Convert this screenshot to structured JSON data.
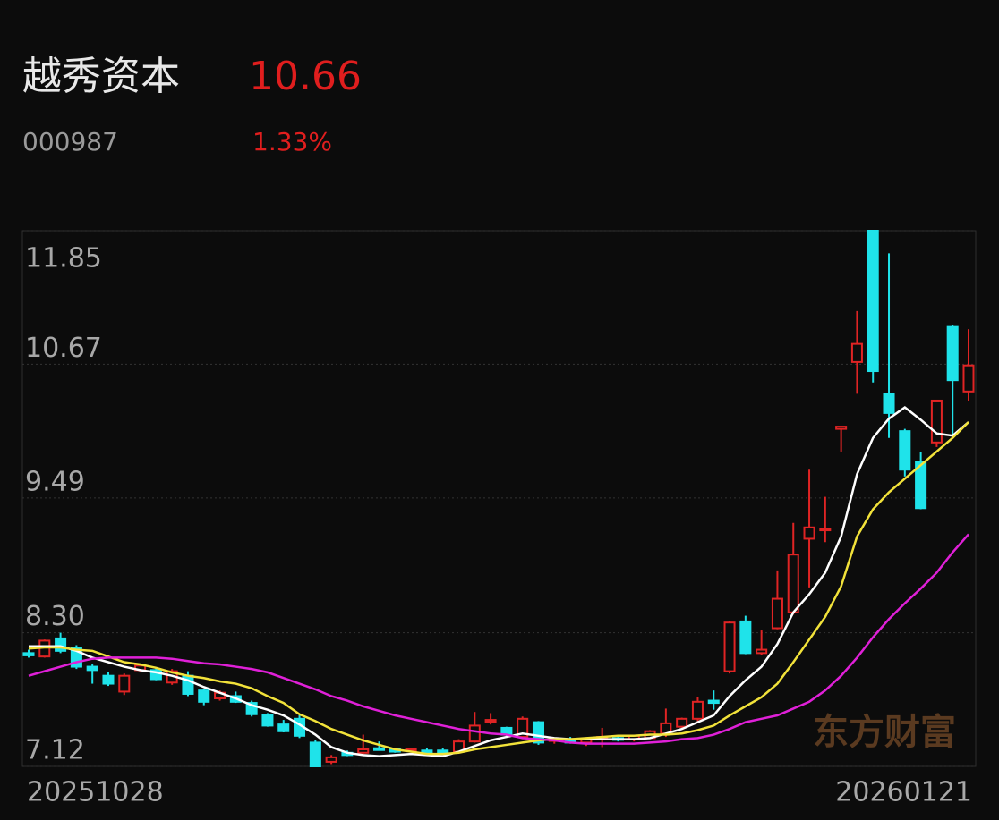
{
  "header": {
    "name": "越秀资本",
    "price": "10.66",
    "code": "000987",
    "change": "1.33%"
  },
  "chart_data": {
    "type": "candlestick",
    "watermark": "东方财富",
    "categories": [
      "20251028",
      null,
      null,
      null,
      null,
      null,
      null,
      null,
      null,
      null,
      null,
      null,
      null,
      null,
      null,
      null,
      null,
      null,
      null,
      null,
      null,
      null,
      null,
      null,
      null,
      null,
      null,
      null,
      null,
      null,
      null,
      null,
      null,
      null,
      null,
      null,
      null,
      null,
      null,
      null,
      null,
      null,
      null,
      null,
      null,
      null,
      null,
      null,
      null,
      null,
      null,
      null,
      null,
      null,
      null,
      null,
      null,
      null,
      null,
      "20260121"
    ],
    "open": [
      8.12,
      8.09,
      8.25,
      8.17,
      8.0,
      7.92,
      7.78,
      7.97,
      7.97,
      7.86,
      7.92,
      7.79,
      7.72,
      7.74,
      7.68,
      7.57,
      7.49,
      7.54,
      7.33,
      7.16,
      7.24,
      7.24,
      7.28,
      7.27,
      7.26,
      7.26,
      7.26,
      7.25,
      7.34,
      7.52,
      7.46,
      7.38,
      7.51,
      7.35,
      7.36,
      7.33,
      7.37,
      7.37,
      7.36,
      7.37,
      7.41,
      7.47,
      7.54,
      7.7,
      7.96,
      8.4,
      8.12,
      8.34,
      8.48,
      9.13,
      9.21,
      10.1,
      10.69,
      11.85,
      10.41,
      10.08,
      9.81,
      9.98,
      11.0,
      10.43
    ],
    "high": [
      8.15,
      8.24,
      8.3,
      8.19,
      8.02,
      7.95,
      7.94,
      8.02,
      7.99,
      7.98,
      7.96,
      7.8,
      7.79,
      7.78,
      7.7,
      7.59,
      7.53,
      7.57,
      7.35,
      7.22,
      7.26,
      7.4,
      7.34,
      7.28,
      7.28,
      7.28,
      7.28,
      7.36,
      7.6,
      7.59,
      7.47,
      7.56,
      7.52,
      7.37,
      7.38,
      7.37,
      7.46,
      7.39,
      7.4,
      7.44,
      7.63,
      7.55,
      7.73,
      7.79,
      8.4,
      8.45,
      8.32,
      8.85,
      9.27,
      9.74,
      9.5,
      10.12,
      11.14,
      11.85,
      11.65,
      10.1,
      9.9,
      10.35,
      11.02,
      10.98
    ],
    "low": [
      8.08,
      8.08,
      8.12,
      7.98,
      7.85,
      7.83,
      7.75,
      7.95,
      7.88,
      7.84,
      7.74,
      7.66,
      7.7,
      7.68,
      7.56,
      7.47,
      7.42,
      7.37,
      7.12,
      7.14,
      7.21,
      7.22,
      7.26,
      7.24,
      7.25,
      7.23,
      7.23,
      7.24,
      7.33,
      7.49,
      7.38,
      7.36,
      7.31,
      7.32,
      7.32,
      7.3,
      7.29,
      7.34,
      7.34,
      7.36,
      7.38,
      7.45,
      7.52,
      7.62,
      7.94,
      8.11,
      8.1,
      8.33,
      8.46,
      8.7,
      9.1,
      9.9,
      10.41,
      10.51,
      10.02,
      9.68,
      9.39,
      9.94,
      10.02,
      10.35
    ],
    "close": [
      8.1,
      8.23,
      8.14,
      8.0,
      7.97,
      7.85,
      7.92,
      8.01,
      7.89,
      7.96,
      7.76,
      7.69,
      7.77,
      7.69,
      7.58,
      7.48,
      7.43,
      7.39,
      7.12,
      7.2,
      7.22,
      7.27,
      7.27,
      7.25,
      7.27,
      7.24,
      7.24,
      7.34,
      7.48,
      7.53,
      7.4,
      7.54,
      7.33,
      7.36,
      7.33,
      7.36,
      7.38,
      7.36,
      7.39,
      7.43,
      7.5,
      7.54,
      7.69,
      7.68,
      8.39,
      8.12,
      8.15,
      8.6,
      8.99,
      9.23,
      9.22,
      10.12,
      10.85,
      10.61,
      10.24,
      9.74,
      9.4,
      10.35,
      10.53,
      10.66
    ],
    "up_color": "#e02424",
    "down_color": "#1fe3ea",
    "ma_lines": [
      {
        "color": "#ffffff",
        "values": [
          8.18,
          8.18,
          8.18,
          8.14,
          8.08,
          8.04,
          8.0,
          7.97,
          7.95,
          7.92,
          7.88,
          7.82,
          7.77,
          7.72,
          7.66,
          7.62,
          7.57,
          7.49,
          7.4,
          7.29,
          7.24,
          7.22,
          7.21,
          7.22,
          7.23,
          7.22,
          7.21,
          7.25,
          7.3,
          7.35,
          7.38,
          7.41,
          7.39,
          7.37,
          7.36,
          7.36,
          7.36,
          7.36,
          7.36,
          7.37,
          7.41,
          7.45,
          7.51,
          7.57,
          7.74,
          7.88,
          8.0,
          8.2,
          8.48,
          8.64,
          8.83,
          9.15,
          9.7,
          10.02,
          10.19,
          10.29,
          10.18,
          10.06,
          10.04,
          10.16
        ]
      },
      {
        "color": "#f2e23a",
        "values": [
          8.16,
          8.17,
          8.17,
          8.15,
          8.14,
          8.09,
          8.04,
          8.02,
          7.99,
          7.95,
          7.92,
          7.9,
          7.87,
          7.85,
          7.81,
          7.74,
          7.68,
          7.58,
          7.52,
          7.45,
          7.4,
          7.35,
          7.31,
          7.27,
          7.25,
          7.23,
          7.23,
          7.24,
          7.27,
          7.29,
          7.31,
          7.33,
          7.35,
          7.36,
          7.36,
          7.37,
          7.38,
          7.39,
          7.39,
          7.4,
          7.4,
          7.41,
          7.44,
          7.48,
          7.57,
          7.65,
          7.73,
          7.85,
          8.04,
          8.24,
          8.44,
          8.71,
          9.15,
          9.39,
          9.54,
          9.66,
          9.78,
          9.9,
          10.02,
          10.16
        ]
      },
      {
        "color": "#e020d8",
        "values": [
          7.92,
          7.96,
          8.0,
          8.04,
          8.07,
          8.08,
          8.08,
          8.08,
          8.08,
          8.07,
          8.05,
          8.03,
          8.02,
          8.0,
          7.98,
          7.95,
          7.9,
          7.85,
          7.8,
          7.74,
          7.7,
          7.65,
          7.61,
          7.57,
          7.54,
          7.51,
          7.48,
          7.45,
          7.43,
          7.41,
          7.4,
          7.37,
          7.36,
          7.35,
          7.33,
          7.32,
          7.32,
          7.32,
          7.32,
          7.33,
          7.34,
          7.36,
          7.37,
          7.4,
          7.45,
          7.51,
          7.54,
          7.57,
          7.63,
          7.69,
          7.79,
          7.92,
          8.08,
          8.26,
          8.42,
          8.56,
          8.69,
          8.83,
          9.01,
          9.17
        ]
      }
    ],
    "ylim": [
      7.12,
      11.85
    ],
    "yticks": [
      7.12,
      {
        "value": 8.3,
        "label": "8.30"
      },
      9.49,
      10.67,
      11.85
    ],
    "grid": true
  }
}
